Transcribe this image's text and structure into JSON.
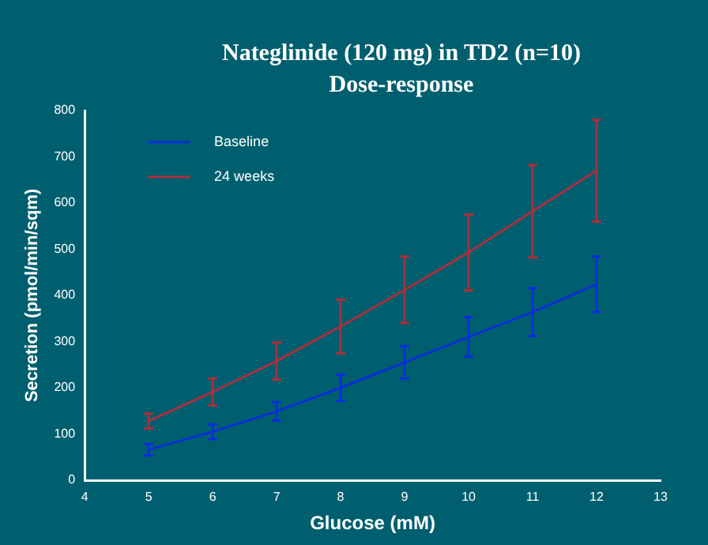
{
  "chart_data": {
    "type": "line",
    "title": "Nateglinide (120 mg) in TD2 (n=10)",
    "subtitle": "Dose-response",
    "xlabel": "Glucose (mM)",
    "ylabel": "Secretion (pmol/min/sqm)",
    "x": [
      5,
      6,
      7,
      8,
      9,
      10,
      11,
      12
    ],
    "series": [
      {
        "name": "Baseline",
        "color": "#0a2fd8",
        "values": [
          66,
          105,
          149,
          200,
          255,
          310,
          364,
          424
        ],
        "errors": [
          12,
          16,
          20,
          28,
          35,
          43,
          52,
          60
        ]
      },
      {
        "name": "24 weeks",
        "color": "#a8303e",
        "values": [
          128,
          191,
          258,
          333,
          412,
          493,
          582,
          670
        ],
        "errors": [
          16,
          29,
          40,
          58,
          72,
          82,
          100,
          110
        ]
      }
    ],
    "xlim": [
      4,
      13
    ],
    "xticks": [
      4,
      5,
      6,
      7,
      8,
      9,
      10,
      11,
      12,
      13
    ],
    "ylim": [
      0,
      800
    ],
    "yticks": [
      0,
      100,
      200,
      300,
      400,
      500,
      600,
      700,
      800
    ],
    "grid": false,
    "legend": "top left",
    "marker": "none",
    "line_style": "solid"
  }
}
